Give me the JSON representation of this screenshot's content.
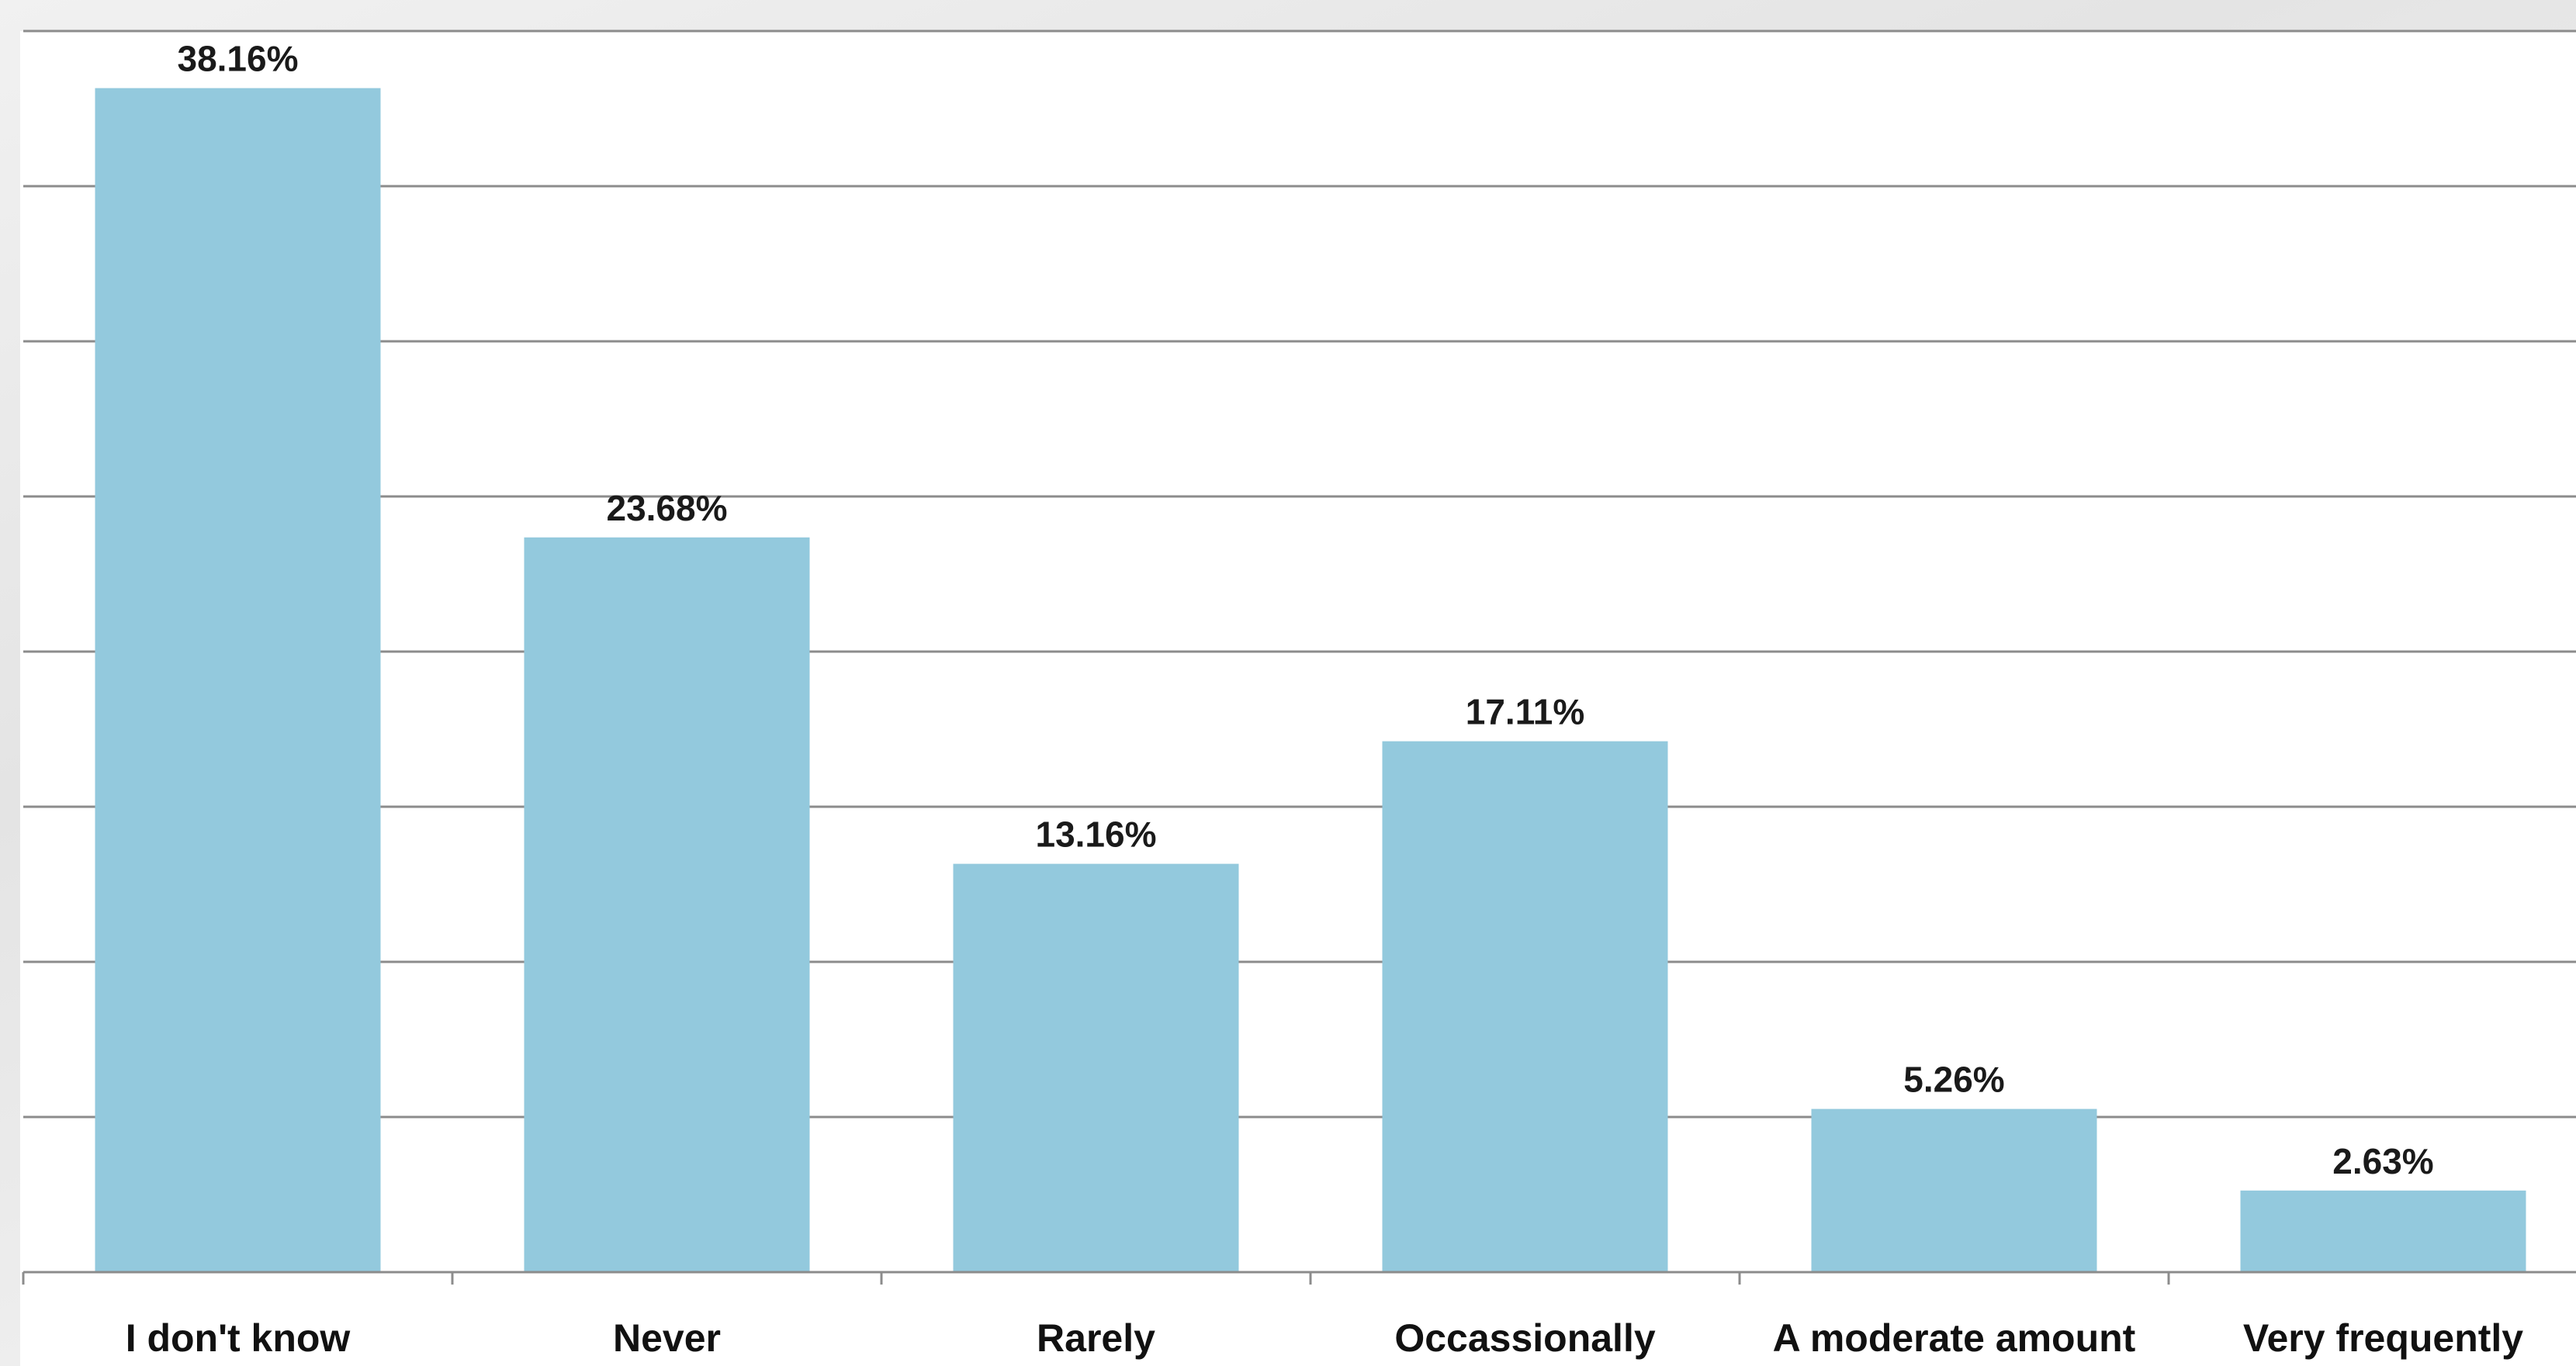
{
  "chart_data": {
    "type": "bar",
    "title": "",
    "xlabel": "",
    "ylabel": "",
    "categories": [
      "I don't know",
      "Never",
      "Rarely",
      "Occassionally",
      "A moderate amount",
      "Very frequently"
    ],
    "values": [
      38.16,
      23.68,
      13.16,
      17.11,
      5.26,
      2.63
    ],
    "data_labels": [
      "38.16%",
      "23.68%",
      "13.16%",
      "17.11%",
      "5.26%",
      "2.63%"
    ],
    "ylim": [
      0,
      40
    ],
    "ytick_step": 5,
    "grid": true,
    "legend": "none",
    "colors": {
      "bar": "#93c9dd",
      "grid": "#8c8c8c",
      "axis": "#8c8c8c"
    }
  }
}
